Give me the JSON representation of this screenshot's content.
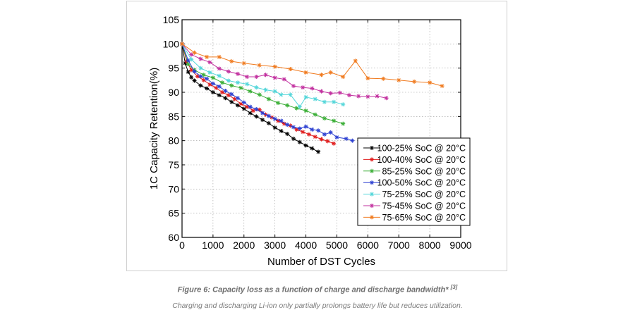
{
  "caption": {
    "title": "Figure 6: Capacity loss as a function of charge and discharge bandwidth*",
    "ref": "[3]",
    "subtitle": "Charging and discharging Li-ion only partially prolongs battery life but reduces utilization."
  },
  "chart_data": {
    "type": "line",
    "title": "",
    "xlabel": "Number of DST Cycles",
    "ylabel": "1C Capacity Retention(%)",
    "xlim": [
      0,
      9000
    ],
    "ylim": [
      60,
      105
    ],
    "xticks": [
      "0",
      "1000",
      "2000",
      "3000",
      "4000",
      "5000",
      "6000",
      "7000",
      "8000",
      "9000"
    ],
    "yticks": [
      "60",
      "65",
      "70",
      "75",
      "80",
      "85",
      "90",
      "95",
      "100",
      "105"
    ],
    "grid": true,
    "legend_position": "lower-right",
    "series": [
      {
        "name": "100-25% SoC @ 20°C",
        "color": "#000000",
        "x": [
          0,
          100,
          200,
          300,
          400,
          600,
          800,
          1000,
          1200,
          1400,
          1600,
          1800,
          2000,
          2200,
          2400,
          2600,
          2800,
          3000,
          3200,
          3400,
          3600,
          3800,
          4000,
          4200,
          4400
        ],
        "y": [
          100,
          96,
          94.2,
          93.1,
          92.4,
          91.4,
          90.8,
          90,
          89.4,
          88.8,
          88,
          87.3,
          86.6,
          85.7,
          85,
          84.3,
          83.6,
          82.7,
          82,
          81.4,
          80.4,
          79.7,
          79,
          78.4,
          77.7
        ]
      },
      {
        "name": "100-40% SoC @ 20°C",
        "color": "#e01b1b",
        "x": [
          0,
          150,
          300,
          500,
          700,
          900,
          1100,
          1300,
          1500,
          1700,
          1900,
          2100,
          2300,
          2500,
          2700,
          2900,
          3100,
          3300,
          3500,
          3700,
          3900,
          4100,
          4300,
          4500,
          4700,
          4900
        ],
        "y": [
          100,
          96.4,
          94.6,
          93.3,
          92.5,
          91.6,
          90.9,
          90,
          89.4,
          88.6,
          87.6,
          87,
          86.2,
          86.4,
          85.4,
          84.8,
          84.1,
          83.5,
          83.1,
          82.3,
          81.8,
          81.3,
          80.8,
          80.3,
          79.9,
          79.4
        ]
      },
      {
        "name": "85-25% SoC @ 20°C",
        "color": "#3aae36",
        "x": [
          0,
          200,
          400,
          700,
          1000,
          1300,
          1600,
          1900,
          2200,
          2500,
          2800,
          3100,
          3400,
          3700,
          4000,
          4300,
          4600,
          4900,
          5200
        ],
        "y": [
          100,
          95.8,
          94.6,
          93.6,
          93,
          92,
          91.4,
          90.9,
          90.2,
          89.5,
          88.6,
          87.8,
          87.3,
          86.7,
          86.2,
          85.4,
          84.6,
          84.1,
          83.5
        ]
      },
      {
        "name": "100-50% SoC @ 20°C",
        "color": "#2b3fd1",
        "x": [
          0,
          200,
          400,
          600,
          800,
          1000,
          1200,
          1400,
          1600,
          1800,
          2000,
          2200,
          2400,
          2600,
          2800,
          3000,
          3200,
          3400,
          3600,
          3800,
          4000,
          4200,
          4400,
          4600,
          4800,
          5000,
          5300,
          5500
        ],
        "y": [
          100,
          96.6,
          94.3,
          93.3,
          92.8,
          91.8,
          91.2,
          90.3,
          89.6,
          88.8,
          87.9,
          87,
          86.5,
          85.7,
          85.1,
          84.5,
          84.1,
          83.3,
          82.8,
          82.5,
          82.9,
          82.3,
          82.1,
          81.3,
          81.7,
          80.7,
          80.4,
          80
        ]
      },
      {
        "name": "75-25% SoC @ 20°C",
        "color": "#52d6d9",
        "x": [
          0,
          300,
          600,
          900,
          1200,
          1500,
          1800,
          2100,
          2400,
          2700,
          3000,
          3200,
          3500,
          3800,
          4000,
          4300,
          4600,
          4900,
          5200
        ],
        "y": [
          100,
          96.8,
          95,
          94.1,
          93.4,
          92.4,
          92,
          91.7,
          91,
          90.5,
          90.2,
          89.5,
          89.5,
          87,
          89,
          88.6,
          88,
          88,
          87.5
        ]
      },
      {
        "name": "75-45% SoC @ 20°C",
        "color": "#c2309f",
        "x": [
          0,
          300,
          600,
          900,
          1200,
          1500,
          1800,
          2100,
          2400,
          2700,
          3000,
          3300,
          3600,
          3900,
          4200,
          4500,
          4800,
          5100,
          5400,
          5700,
          6000,
          6300,
          6600
        ],
        "y": [
          100,
          97.8,
          96.9,
          96.2,
          94.9,
          94.3,
          93.8,
          93.2,
          93.2,
          93.6,
          93,
          92.7,
          91.3,
          91,
          90.8,
          90.2,
          89.8,
          89.9,
          89.4,
          89.2,
          89.1,
          89.2,
          88.8
        ]
      },
      {
        "name": "75-65% SoC @ 20°C",
        "color": "#f07a1e",
        "x": [
          0,
          400,
          800,
          1200,
          1600,
          2000,
          2500,
          3000,
          3500,
          4000,
          4500,
          4800,
          5200,
          5600,
          6000,
          6500,
          7000,
          7500,
          8000,
          8400
        ],
        "y": [
          100,
          98.2,
          97.3,
          97.3,
          96.4,
          96,
          95.6,
          95.3,
          94.8,
          94.1,
          93.6,
          94.1,
          93.2,
          96.5,
          92.9,
          92.8,
          92.5,
          92.2,
          92,
          91.3
        ]
      }
    ]
  }
}
